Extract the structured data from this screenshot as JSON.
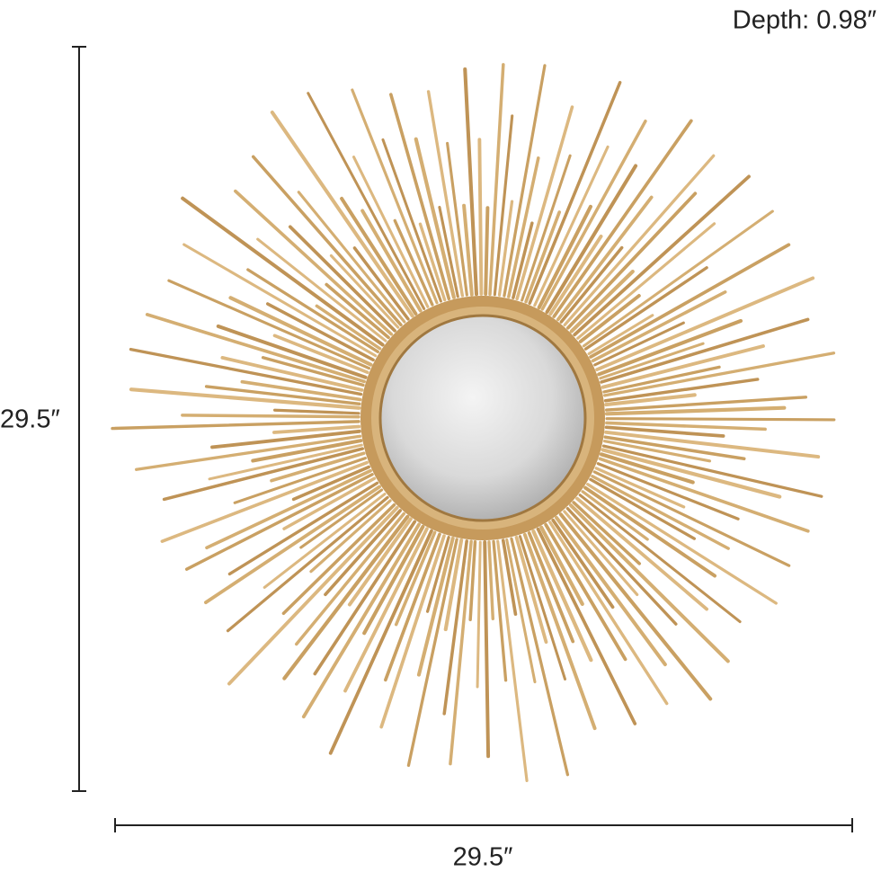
{
  "depth_label": "Depth: 0.98″",
  "height_label": "29.5″",
  "width_label": "29.5″"
}
